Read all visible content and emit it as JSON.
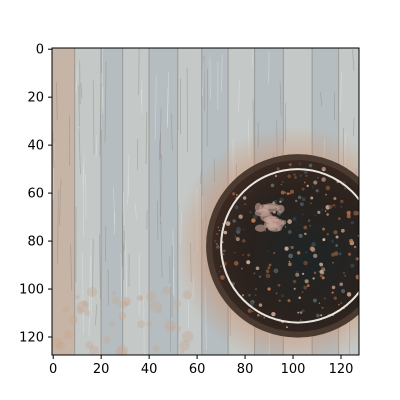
{
  "chart_data": {
    "type": "image",
    "title": "",
    "xlabel": "",
    "ylabel": "",
    "xlim": [
      -0.5,
      127.5
    ],
    "ylim": [
      127.5,
      -0.5
    ],
    "x_ticks": [
      0,
      20,
      40,
      60,
      80,
      100,
      120
    ],
    "y_ticks": [
      0,
      20,
      40,
      60,
      80,
      100,
      120
    ],
    "grid": false,
    "legend": "none",
    "image": {
      "subject": "rusty metal manhole cover with a light ring set into weathered vertical wooden planks",
      "center": [
        102,
        82
      ],
      "radius": 37,
      "ring_radius": 32,
      "colors": {
        "wood_light": "#c4c8c6",
        "wood_blue": "#a9b5bb",
        "wood_warm": "#c8a48c",
        "rust": "#d08a62",
        "cover_dark": "#2a221e",
        "cover_edge": "#4a3a30",
        "ring": "#e9e4de"
      }
    }
  }
}
